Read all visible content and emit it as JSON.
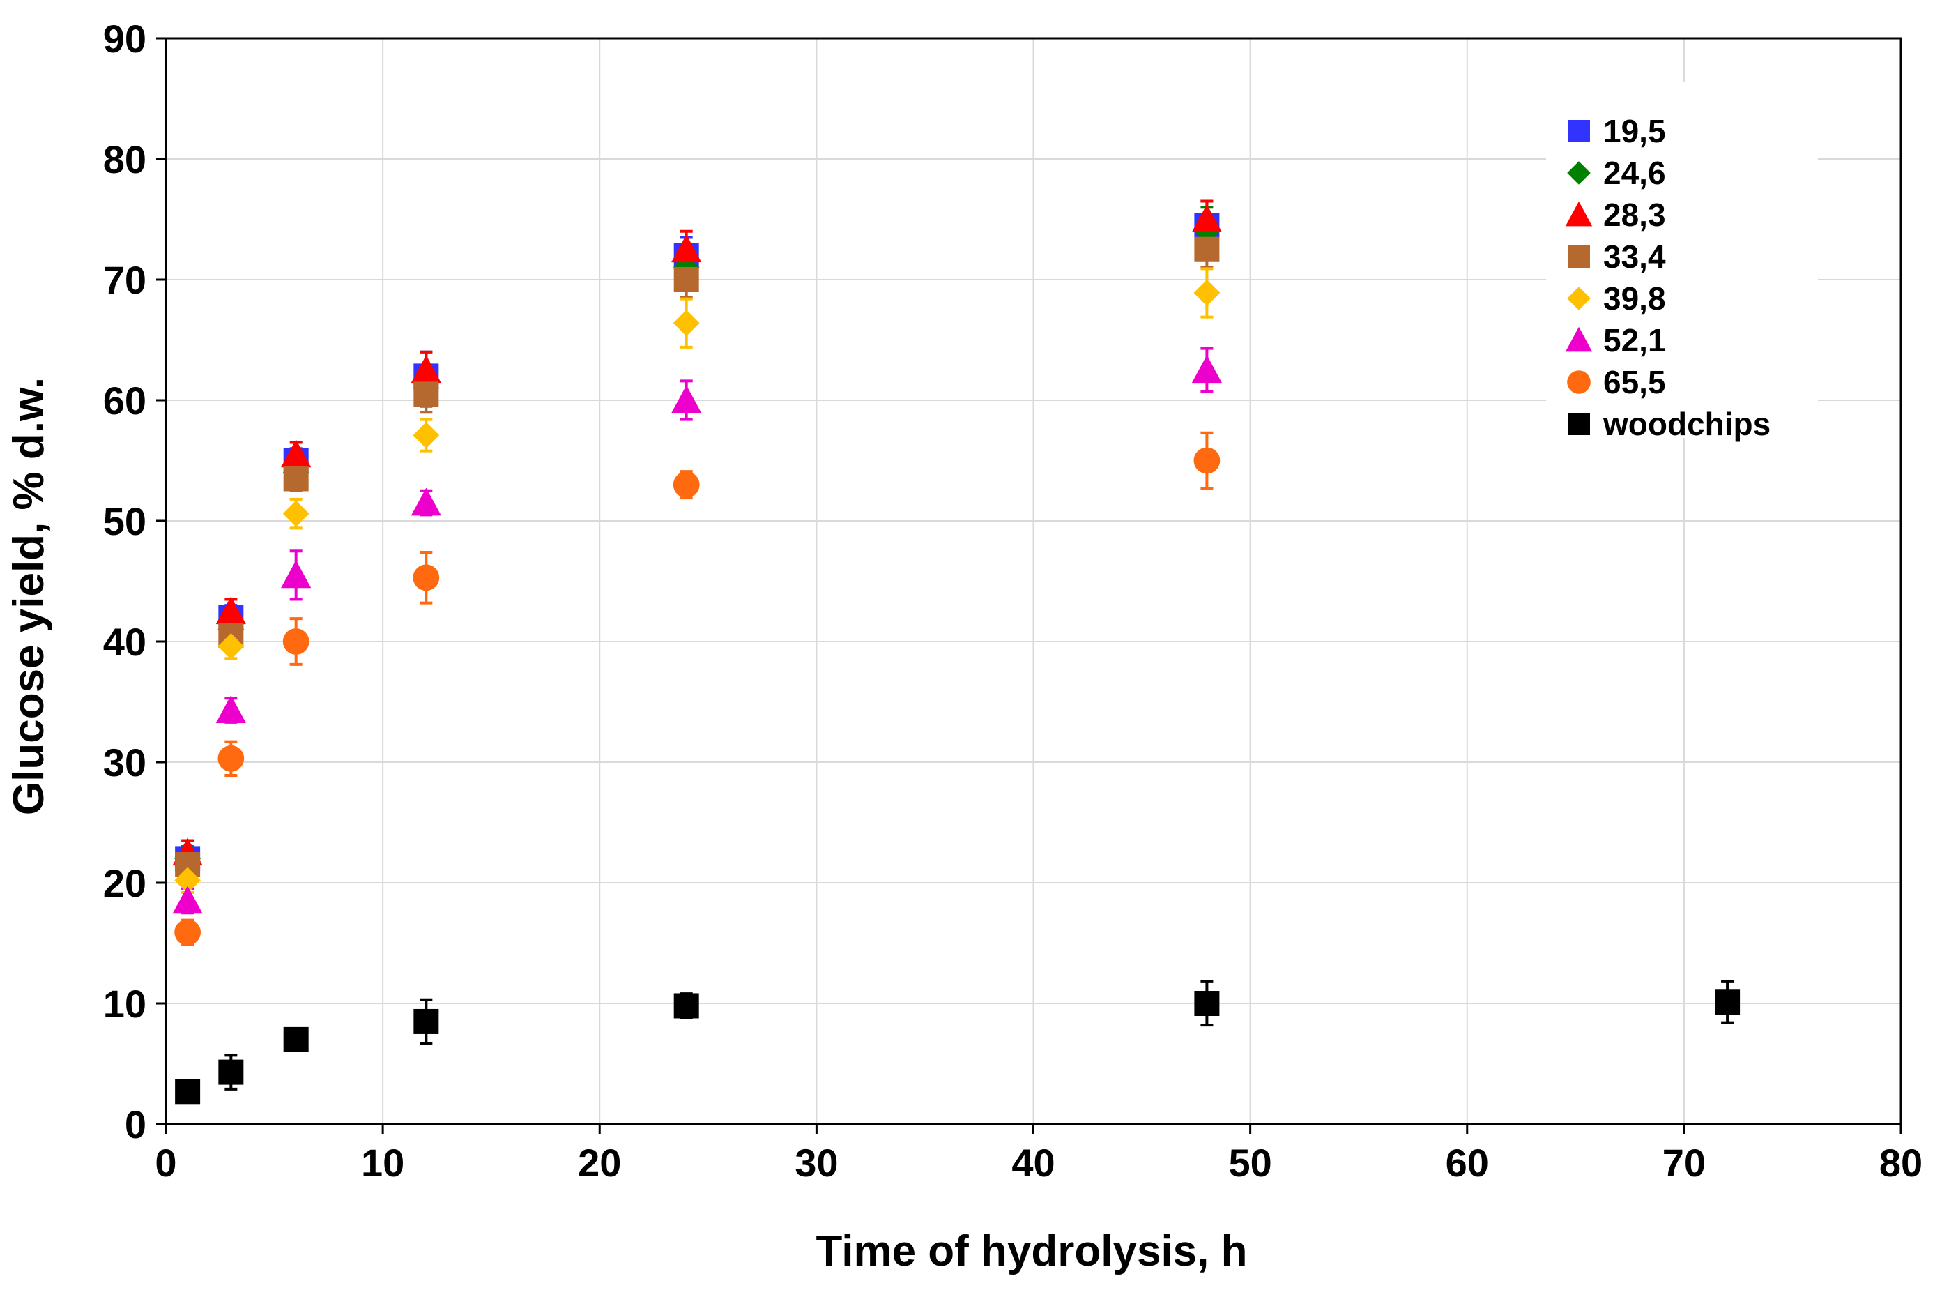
{
  "chart_data": {
    "type": "scatter",
    "xlabel": "Time of hydrolysis, h",
    "ylabel": "Glucose yield, % d.w.",
    "xlim": [
      0,
      80
    ],
    "ylim": [
      0,
      90
    ],
    "xticks": [
      0,
      10,
      20,
      30,
      40,
      50,
      60,
      70,
      80
    ],
    "yticks": [
      0,
      10,
      20,
      30,
      40,
      50,
      60,
      70,
      80,
      90
    ],
    "xtick_labels": [
      "0",
      "10",
      "20",
      "30",
      "40",
      "50",
      "60",
      "70",
      "80"
    ],
    "ytick_labels": [
      "0",
      "10",
      "20",
      "30",
      "40",
      "50",
      "60",
      "70",
      "80",
      "90"
    ],
    "grid": true,
    "legend_position": "top-right",
    "series": [
      {
        "name": "19,5",
        "marker": "square",
        "color": "#3333ff",
        "x": [
          1,
          3,
          6,
          12,
          24,
          48
        ],
        "y": [
          22,
          42,
          55,
          62,
          72,
          74.5
        ],
        "err": [
          1,
          1,
          1,
          2,
          1.5,
          2
        ]
      },
      {
        "name": "24,6",
        "marker": "diamond",
        "color": "#008000",
        "x": [
          1,
          3,
          6,
          12,
          24,
          48
        ],
        "y": [
          22,
          41,
          54,
          61,
          71,
          74
        ],
        "err": [
          1,
          1,
          1,
          1.5,
          1.5,
          2
        ]
      },
      {
        "name": "28,3",
        "marker": "triangle",
        "color": "#ff0000",
        "x": [
          1,
          3,
          6,
          12,
          24,
          48
        ],
        "y": [
          22.5,
          42.5,
          55.5,
          62.5,
          72.5,
          75
        ],
        "err": [
          1,
          1,
          1,
          1.5,
          1.5,
          1.5
        ]
      },
      {
        "name": "33,4",
        "marker": "square",
        "color": "#b5692e",
        "x": [
          1,
          3,
          6,
          12,
          24,
          48
        ],
        "y": [
          21.5,
          40.5,
          53.5,
          60.5,
          70,
          72.5
        ],
        "err": [
          1,
          1,
          1,
          1.5,
          1.5,
          1.5
        ]
      },
      {
        "name": "39,8",
        "marker": "diamond",
        "color": "#ffc000",
        "x": [
          1,
          3,
          6,
          12,
          24,
          48
        ],
        "y": [
          20.2,
          39.6,
          50.6,
          57.1,
          66.4,
          68.9
        ],
        "err": [
          1,
          1,
          1.2,
          1.3,
          2,
          2
        ]
      },
      {
        "name": "52,1",
        "marker": "triangle",
        "color": "#ee00cc",
        "x": [
          1,
          3,
          6,
          12,
          24,
          48
        ],
        "y": [
          18.5,
          34.3,
          45.5,
          51.5,
          60,
          62.5
        ],
        "err": [
          1,
          1,
          2,
          1,
          1.6,
          1.8
        ]
      },
      {
        "name": "65,5",
        "marker": "circle",
        "color": "#ff6a10",
        "x": [
          1,
          3,
          6,
          12,
          24,
          48
        ],
        "y": [
          15.9,
          30.3,
          40,
          45.3,
          53,
          55
        ],
        "err": [
          1,
          1.4,
          1.9,
          2.1,
          1.1,
          2.3
        ]
      },
      {
        "name": "woodchips",
        "marker": "square",
        "color": "#000000",
        "x": [
          1,
          3,
          6,
          12,
          24,
          48,
          72
        ],
        "y": [
          2.7,
          4.3,
          7,
          8.5,
          9.8,
          10,
          10.1
        ],
        "err": [
          0.5,
          1.4,
          0.5,
          1.8,
          1,
          1.8,
          1.7
        ]
      }
    ]
  }
}
